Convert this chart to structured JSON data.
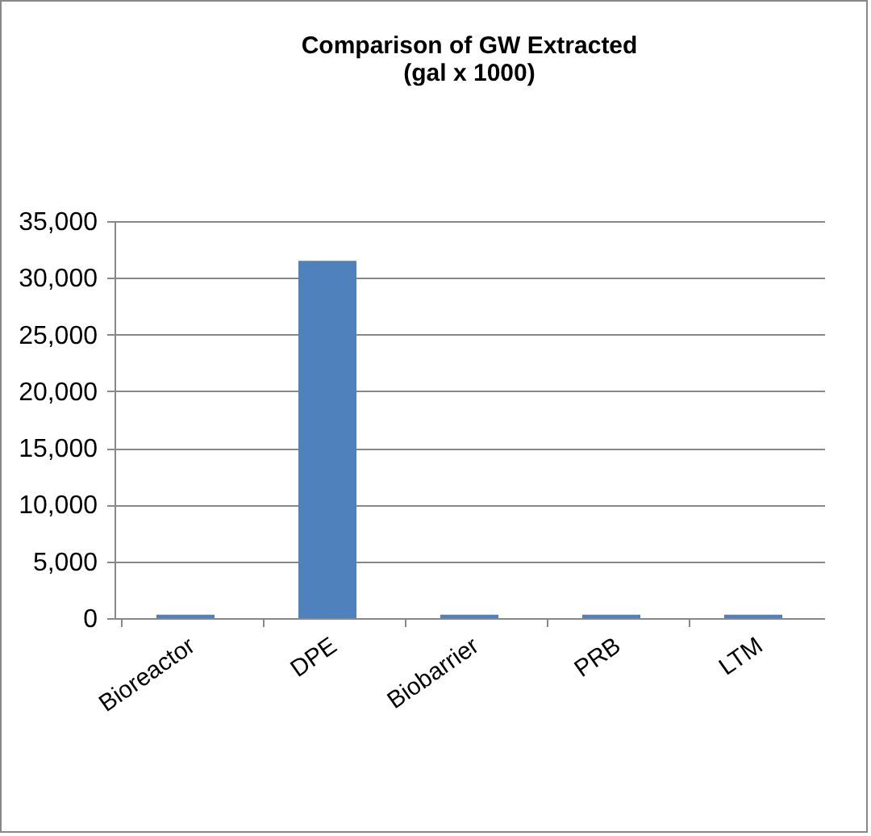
{
  "chart_data": {
    "type": "bar",
    "title": [
      "Comparison of GW Extracted",
      "(gal x 1000)"
    ],
    "categories": [
      "Bioreactor",
      "DPE",
      "Biobarrier",
      "PRB",
      "LTM"
    ],
    "values": [
      300,
      31500,
      300,
      300,
      300
    ],
    "color": "#4f81bd",
    "ylim": [
      0,
      35000
    ],
    "yticks": [
      0,
      {
        "value": 5000,
        "label": "5,000"
      },
      {
        "value": 10000,
        "label": "10,000"
      },
      {
        "value": 15000,
        "label": "15,000"
      },
      {
        "value": 20000,
        "label": "20,000"
      },
      {
        "value": 25000,
        "label": "25,000"
      },
      {
        "value": 30000,
        "label": "30,000"
      },
      {
        "value": 35000,
        "label": "35,000"
      }
    ],
    "grid": "y"
  }
}
